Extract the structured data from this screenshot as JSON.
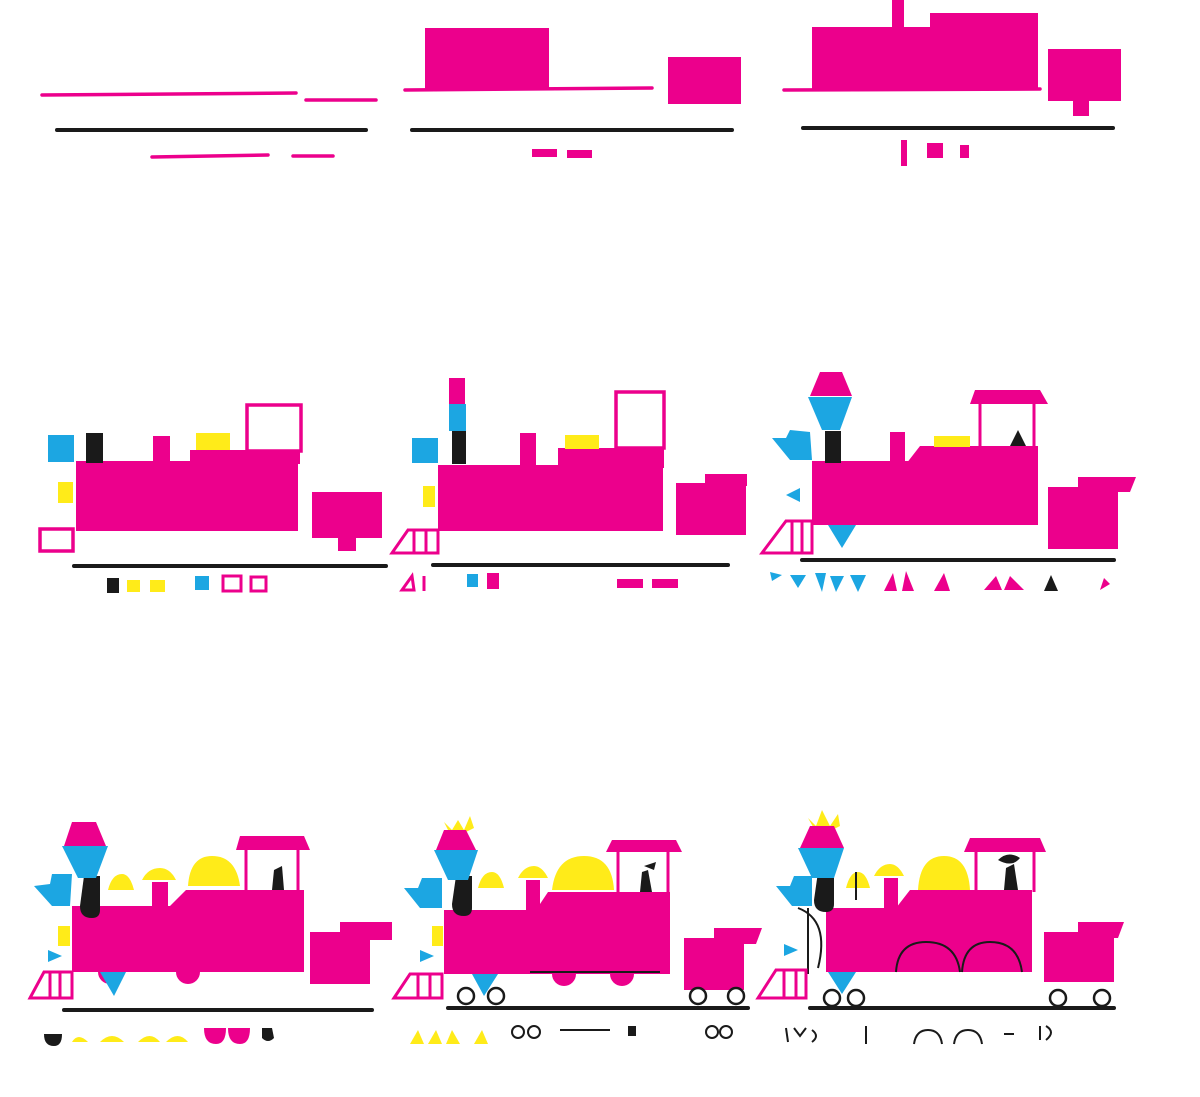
{
  "illustration": {
    "subject": "steam-locomotive-drawing-steps",
    "step_count": 9,
    "colors": {
      "magenta": "#EC008C",
      "cyan": "#1CA6E2",
      "yellow": "#FFEB19",
      "black": "#1a1a1a",
      "background": "#ffffff"
    },
    "steps": [
      {
        "step": 1,
        "row": 1,
        "column": 1
      },
      {
        "step": 2,
        "row": 1,
        "column": 2
      },
      {
        "step": 3,
        "row": 1,
        "column": 3
      },
      {
        "step": 4,
        "row": 2,
        "column": 1
      },
      {
        "step": 5,
        "row": 2,
        "column": 2
      },
      {
        "step": 6,
        "row": 2,
        "column": 3
      },
      {
        "step": 7,
        "row": 3,
        "column": 1
      },
      {
        "step": 8,
        "row": 3,
        "column": 2
      },
      {
        "step": 9,
        "row": 3,
        "column": 3
      }
    ]
  }
}
